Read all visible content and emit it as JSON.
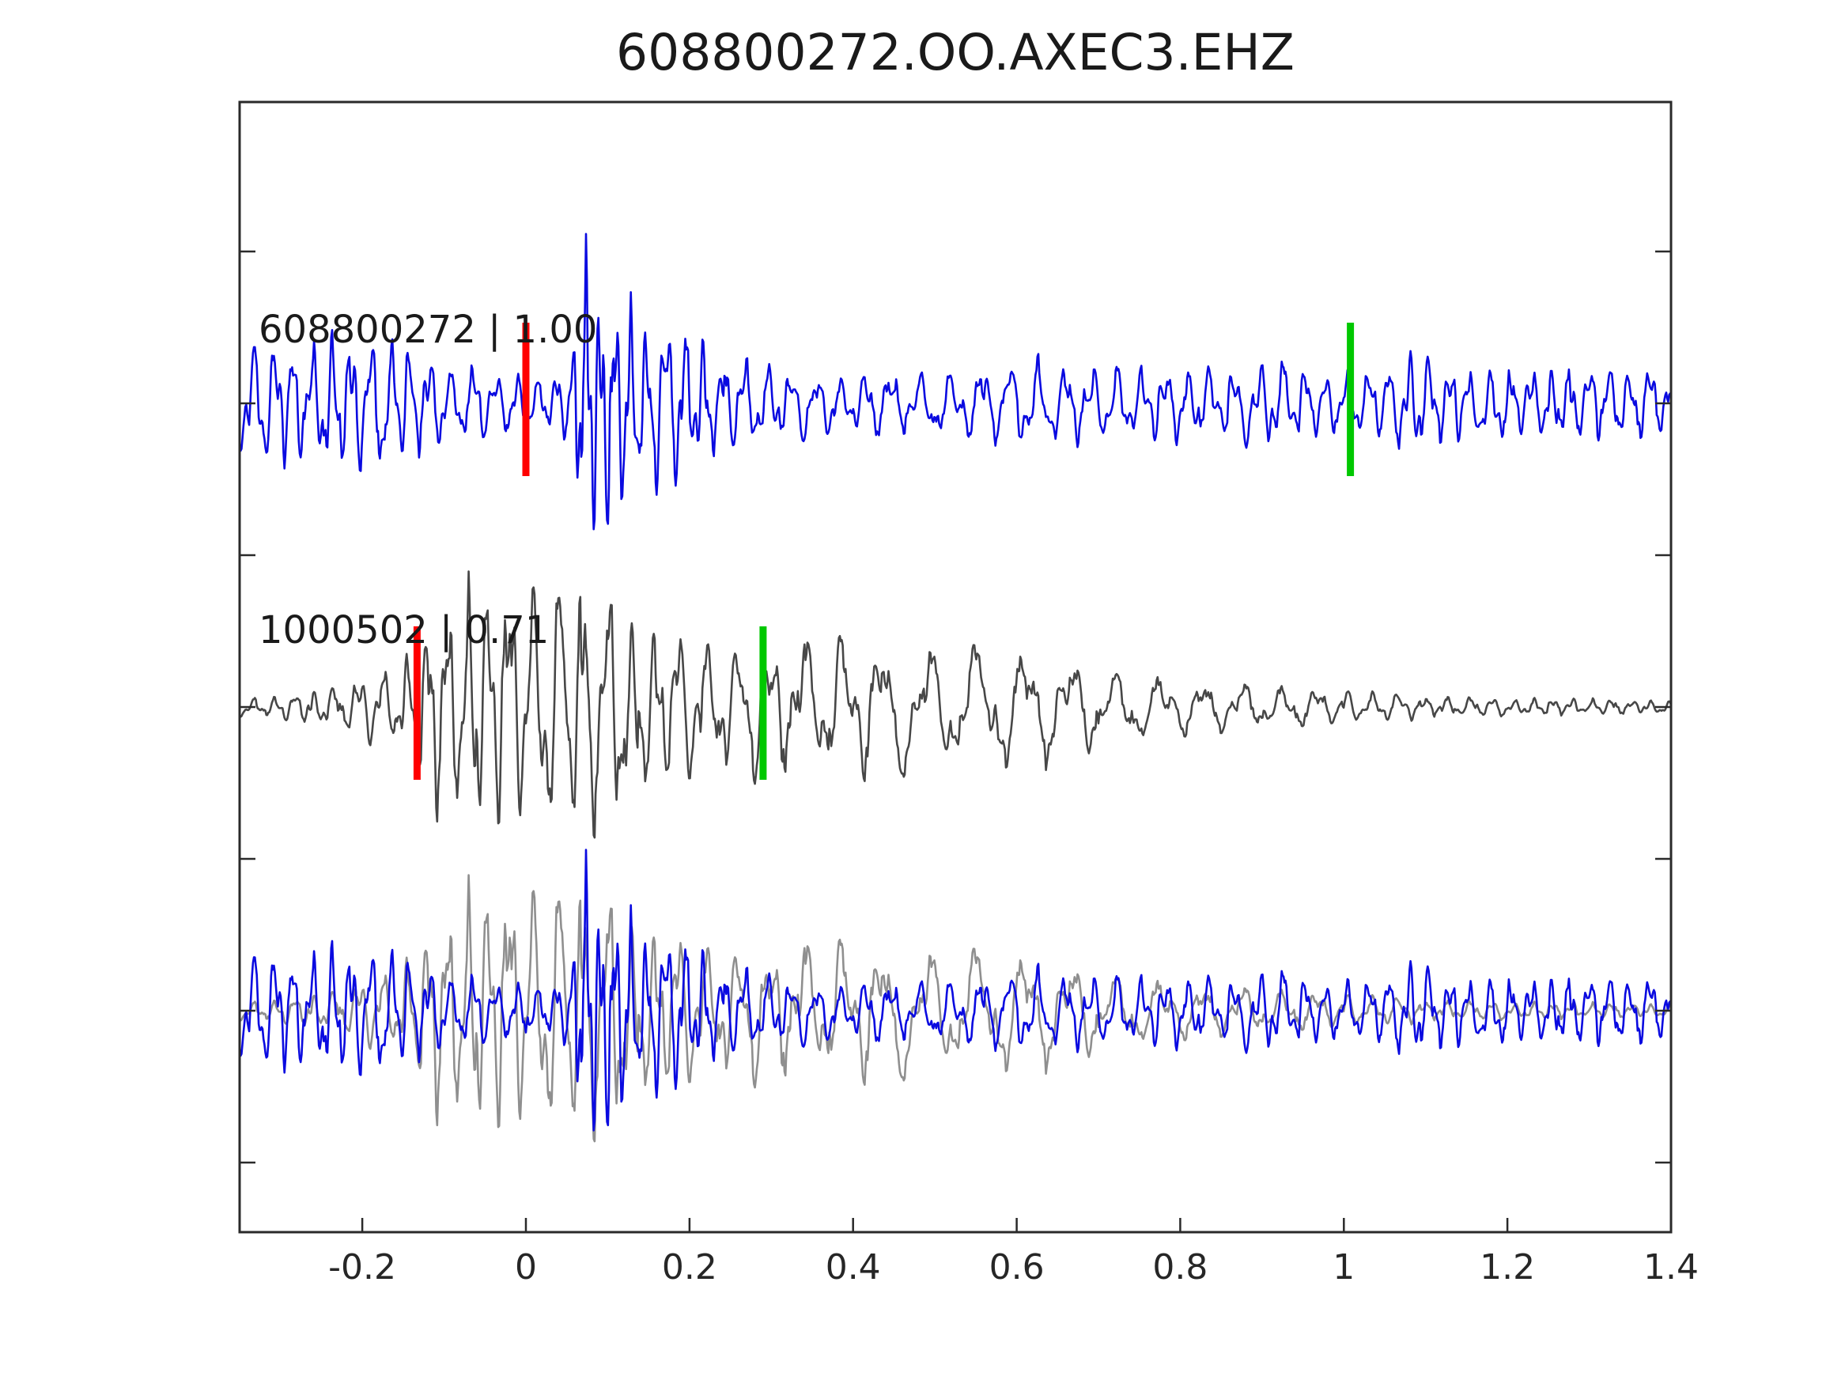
{
  "title": "608800272.OO.AXEC3.EHZ",
  "chart_data": {
    "type": "line",
    "title": "608800272.OO.AXEC3.EHZ",
    "xlabel": "",
    "ylabel": "",
    "grid": false,
    "legend": "none",
    "x_range": [
      -0.35,
      1.4
    ],
    "x_ticks": [
      -0.2,
      0,
      0.2,
      0.4,
      0.6,
      0.8,
      1,
      1.2,
      1.4
    ],
    "x_tick_labels": [
      "-0.2",
      "0",
      "0.2",
      "0.4",
      "0.6",
      "0.8",
      "1",
      "1.2",
      "1.4"
    ],
    "rows": 3,
    "colors": {
      "template_blue": "#0a0ae0",
      "detection_gray": "#474747",
      "overlay_gray": "#8f8f8f",
      "pick_red": "#ff0000",
      "pick_green": "#00c800",
      "axis": "#2a2a2a",
      "tick_label": "#262626"
    },
    "traces": [
      {
        "row": 0,
        "id": "608800272",
        "correlation": "1.00",
        "label": "608800272 | 1.00",
        "name": "template-waveform",
        "color": "#0a0ae0",
        "seed": 11,
        "picks": [
          {
            "x": 0.0,
            "color": "#ff0000",
            "name": "red-pick"
          },
          {
            "x": 1.008,
            "color": "#00c800",
            "name": "green-pick"
          }
        ],
        "envelope": [
          [
            -0.35,
            78
          ],
          [
            -0.3,
            85
          ],
          [
            -0.26,
            80
          ],
          [
            -0.21,
            90
          ],
          [
            -0.17,
            95
          ],
          [
            -0.13,
            70
          ],
          [
            -0.09,
            48
          ],
          [
            -0.04,
            45
          ],
          [
            0.0,
            42
          ],
          [
            0.03,
            35
          ],
          [
            0.055,
            50
          ],
          [
            0.075,
            215
          ],
          [
            0.09,
            195
          ],
          [
            0.105,
            150
          ],
          [
            0.13,
            120
          ],
          [
            0.17,
            105
          ],
          [
            0.21,
            85
          ],
          [
            0.26,
            65
          ],
          [
            0.31,
            48
          ],
          [
            0.37,
            38
          ],
          [
            0.44,
            42
          ],
          [
            0.5,
            45
          ],
          [
            0.56,
            50
          ],
          [
            0.62,
            58
          ],
          [
            0.68,
            48
          ],
          [
            0.74,
            45
          ],
          [
            0.79,
            52
          ],
          [
            0.85,
            45
          ],
          [
            0.92,
            58
          ],
          [
            0.97,
            38
          ],
          [
            1.02,
            42
          ],
          [
            1.08,
            60
          ],
          [
            1.14,
            48
          ],
          [
            1.22,
            46
          ],
          [
            1.3,
            46
          ],
          [
            1.4,
            44
          ]
        ],
        "frequency": [
          [
            -0.35,
            42
          ],
          [
            0.0,
            40
          ],
          [
            0.06,
            52
          ],
          [
            0.13,
            48
          ],
          [
            0.22,
            42
          ],
          [
            0.32,
            34
          ],
          [
            0.5,
            30
          ],
          [
            0.72,
            32
          ],
          [
            0.92,
            36
          ],
          [
            1.05,
            38
          ],
          [
            1.4,
            40
          ]
        ]
      },
      {
        "row": 1,
        "id": "1000502",
        "correlation": "0.71",
        "label": "1000502 | 0.71",
        "name": "detection-waveform",
        "color": "#474747",
        "seed": 29,
        "picks": [
          {
            "x": -0.133,
            "color": "#ff0000",
            "name": "red-pick"
          },
          {
            "x": 0.29,
            "color": "#00c800",
            "name": "green-pick"
          }
        ],
        "envelope": [
          [
            -0.35,
            13
          ],
          [
            -0.29,
            17
          ],
          [
            -0.24,
            26
          ],
          [
            -0.2,
            40
          ],
          [
            -0.165,
            55
          ],
          [
            -0.14,
            70
          ],
          [
            -0.12,
            130
          ],
          [
            -0.08,
            145
          ],
          [
            -0.03,
            160
          ],
          [
            0.02,
            170
          ],
          [
            0.06,
            195
          ],
          [
            0.09,
            185
          ],
          [
            0.12,
            140
          ],
          [
            0.16,
            110
          ],
          [
            0.21,
            90
          ],
          [
            0.26,
            85
          ],
          [
            0.3,
            88
          ],
          [
            0.36,
            82
          ],
          [
            0.42,
            90
          ],
          [
            0.48,
            82
          ],
          [
            0.54,
            86
          ],
          [
            0.6,
            80
          ],
          [
            0.66,
            65
          ],
          [
            0.72,
            50
          ],
          [
            0.79,
            36
          ],
          [
            0.86,
            30
          ],
          [
            0.94,
            26
          ],
          [
            1.02,
            20
          ],
          [
            1.1,
            14
          ],
          [
            1.2,
            11
          ],
          [
            1.3,
            10
          ],
          [
            1.4,
            9
          ]
        ],
        "frequency": [
          [
            -0.35,
            40
          ],
          [
            -0.15,
            38
          ],
          [
            0.0,
            36
          ],
          [
            0.15,
            32
          ],
          [
            0.3,
            24
          ],
          [
            0.45,
            17
          ],
          [
            0.62,
            16
          ],
          [
            0.78,
            18
          ],
          [
            0.95,
            24
          ],
          [
            1.1,
            34
          ],
          [
            1.4,
            44
          ]
        ]
      },
      {
        "row": 2,
        "ref": 1,
        "name": "overlay-detection-waveform",
        "color": "#8f8f8f",
        "scale": 1.0,
        "picks": []
      },
      {
        "row": 2,
        "ref": 0,
        "name": "overlay-template-waveform",
        "color": "#0a0ae0",
        "scale": 0.95,
        "picks": []
      }
    ]
  }
}
